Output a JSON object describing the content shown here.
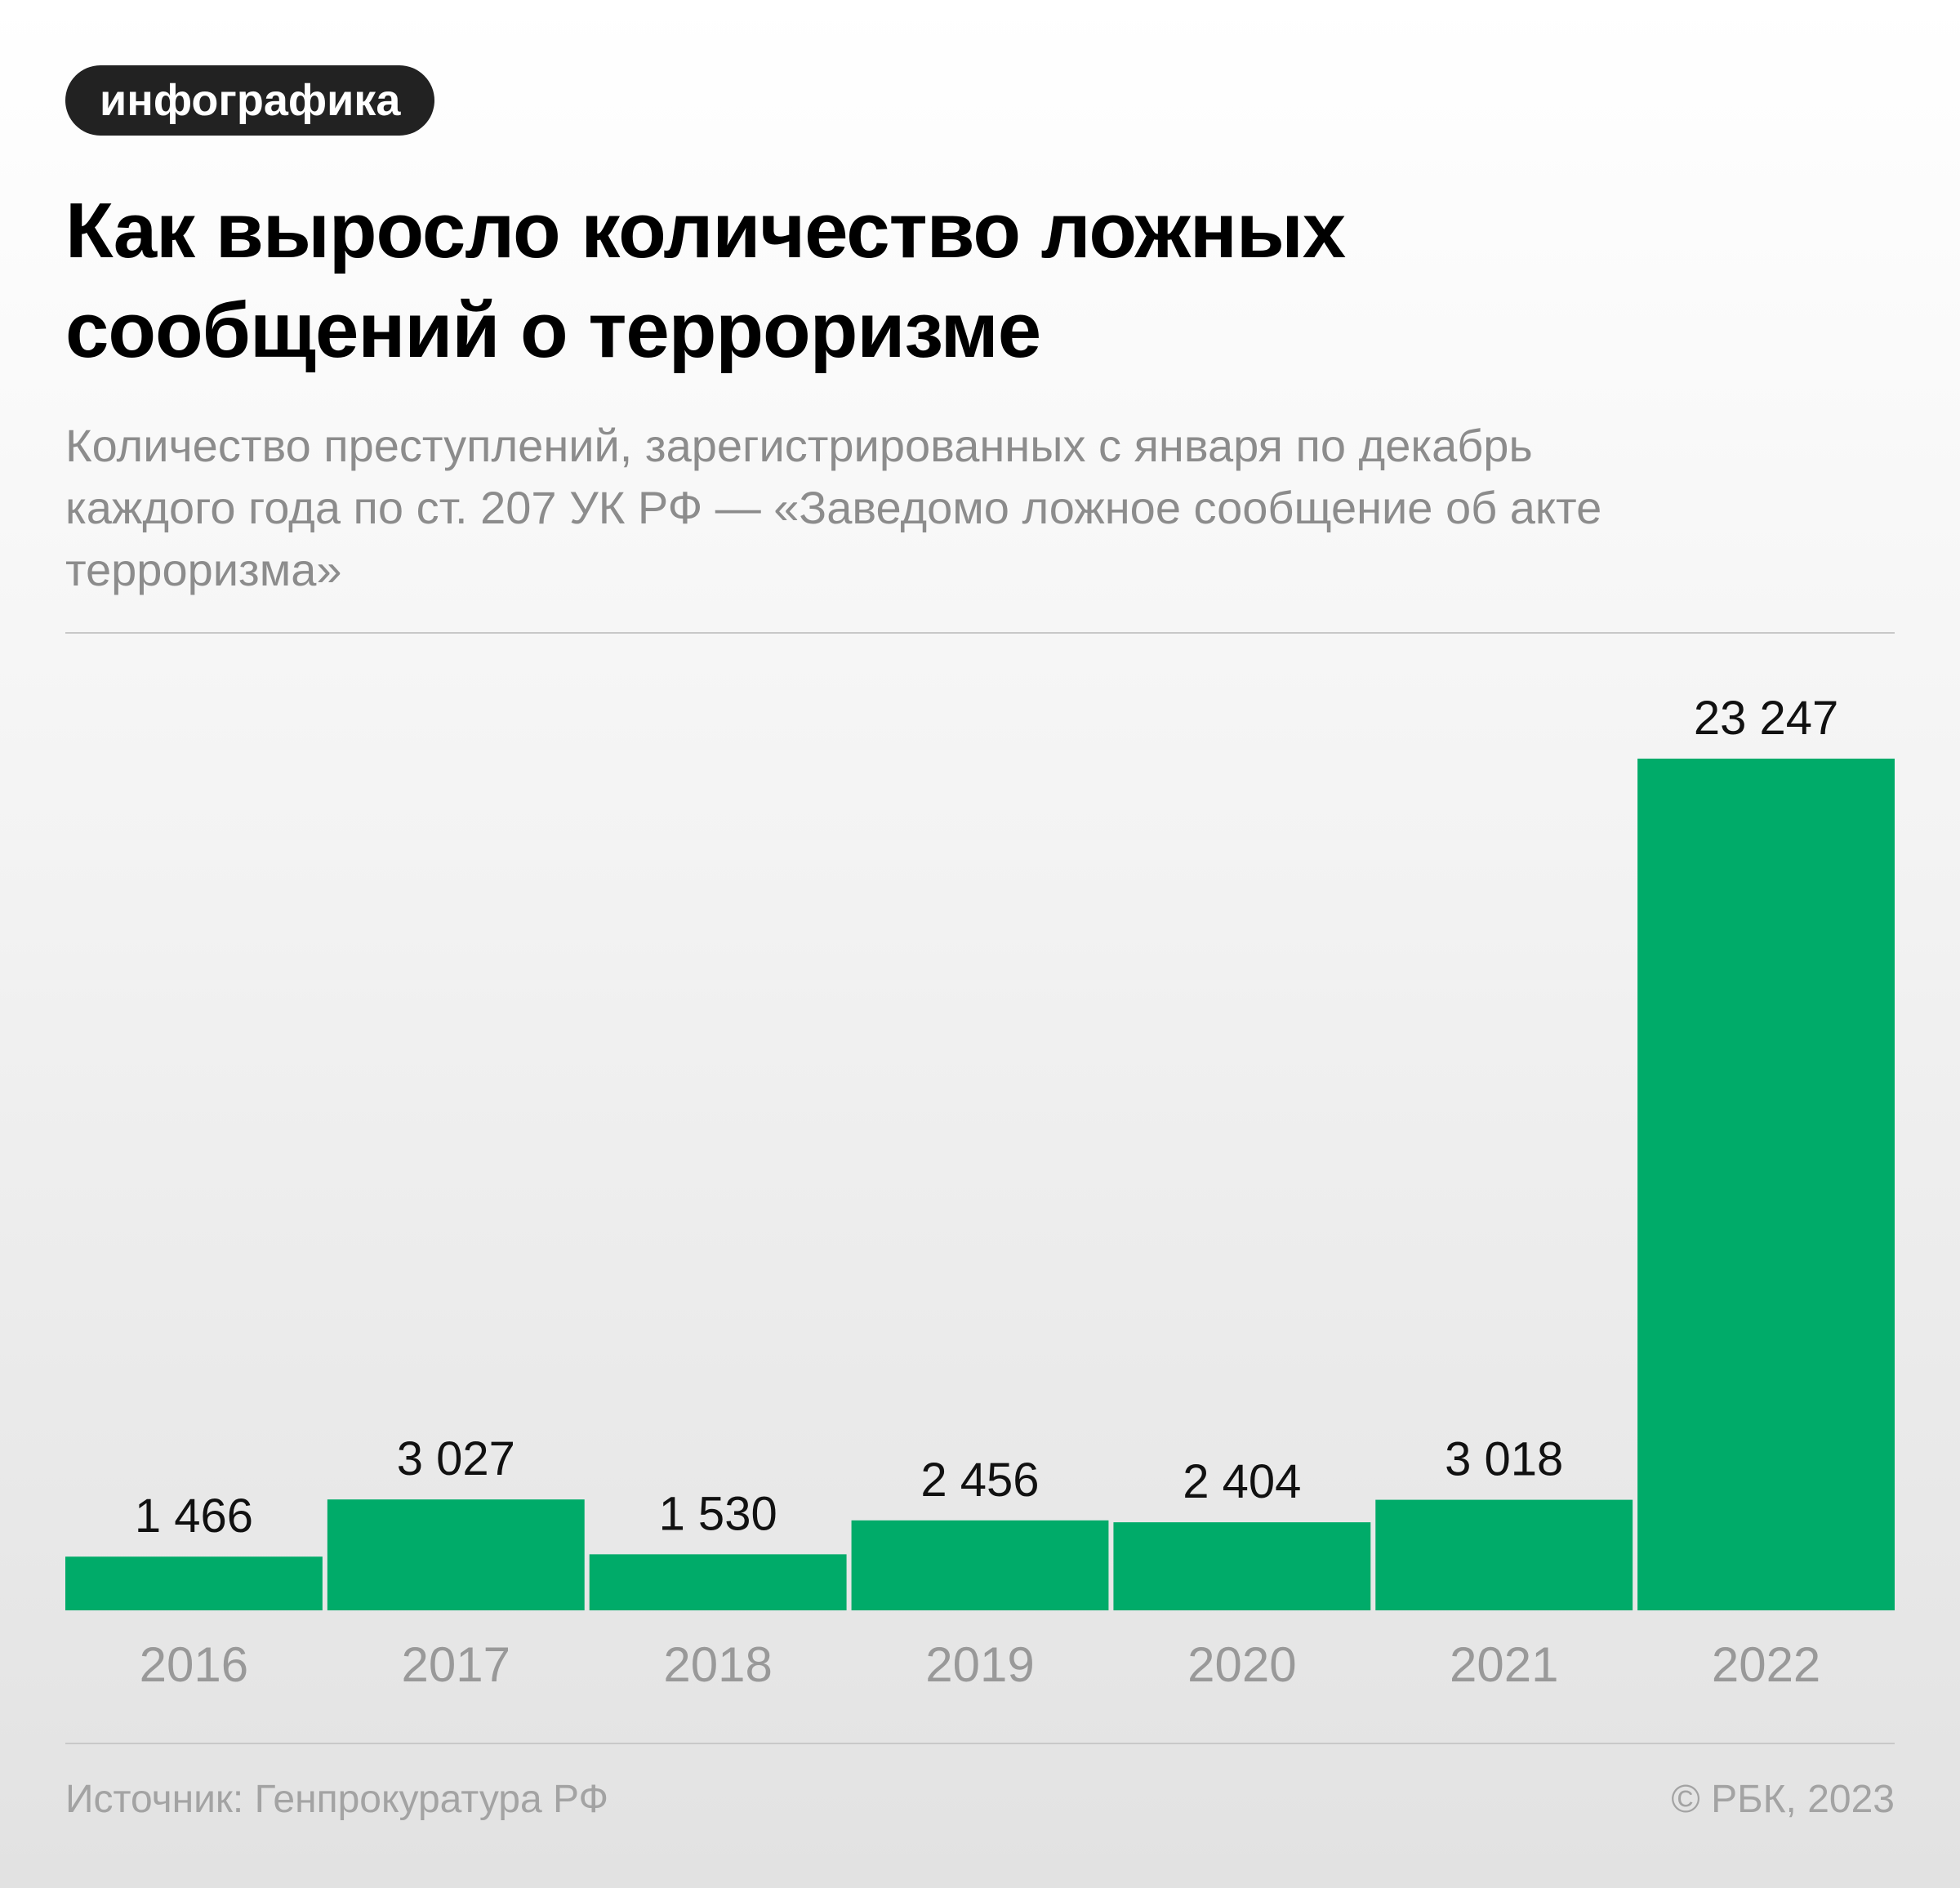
{
  "badge": "инфографика",
  "title_lines": [
    "Как выросло количество ложных",
    "сообщений о терроризме"
  ],
  "subtitle_lines": [
    "Количество преступлений, зарегистрированных с января по декабрь",
    "каждого года по ст. 207 УК РФ — «Заведомо ложное сообщение об акте",
    "терроризма»"
  ],
  "colors": {
    "bar": "#00ab69",
    "badge_bg": "#222222"
  },
  "chart_data": {
    "type": "bar",
    "categories": [
      "2016",
      "2017",
      "2018",
      "2019",
      "2020",
      "2021",
      "2022"
    ],
    "values": [
      1466,
      3027,
      1530,
      2456,
      2404,
      3018,
      23247
    ],
    "value_labels": [
      "1 466",
      "3 027",
      "1 530",
      "2 456",
      "2 404",
      "3 018",
      "23 247"
    ],
    "title": "Как выросло количество ложных сообщений о терроризме",
    "xlabel": "",
    "ylabel": "",
    "ylim": [
      0,
      25000
    ],
    "grid": false,
    "legend": "none"
  },
  "footer": {
    "source": "Источник: Генпрокуратура РФ",
    "copyright": "© РБК, 2023"
  }
}
